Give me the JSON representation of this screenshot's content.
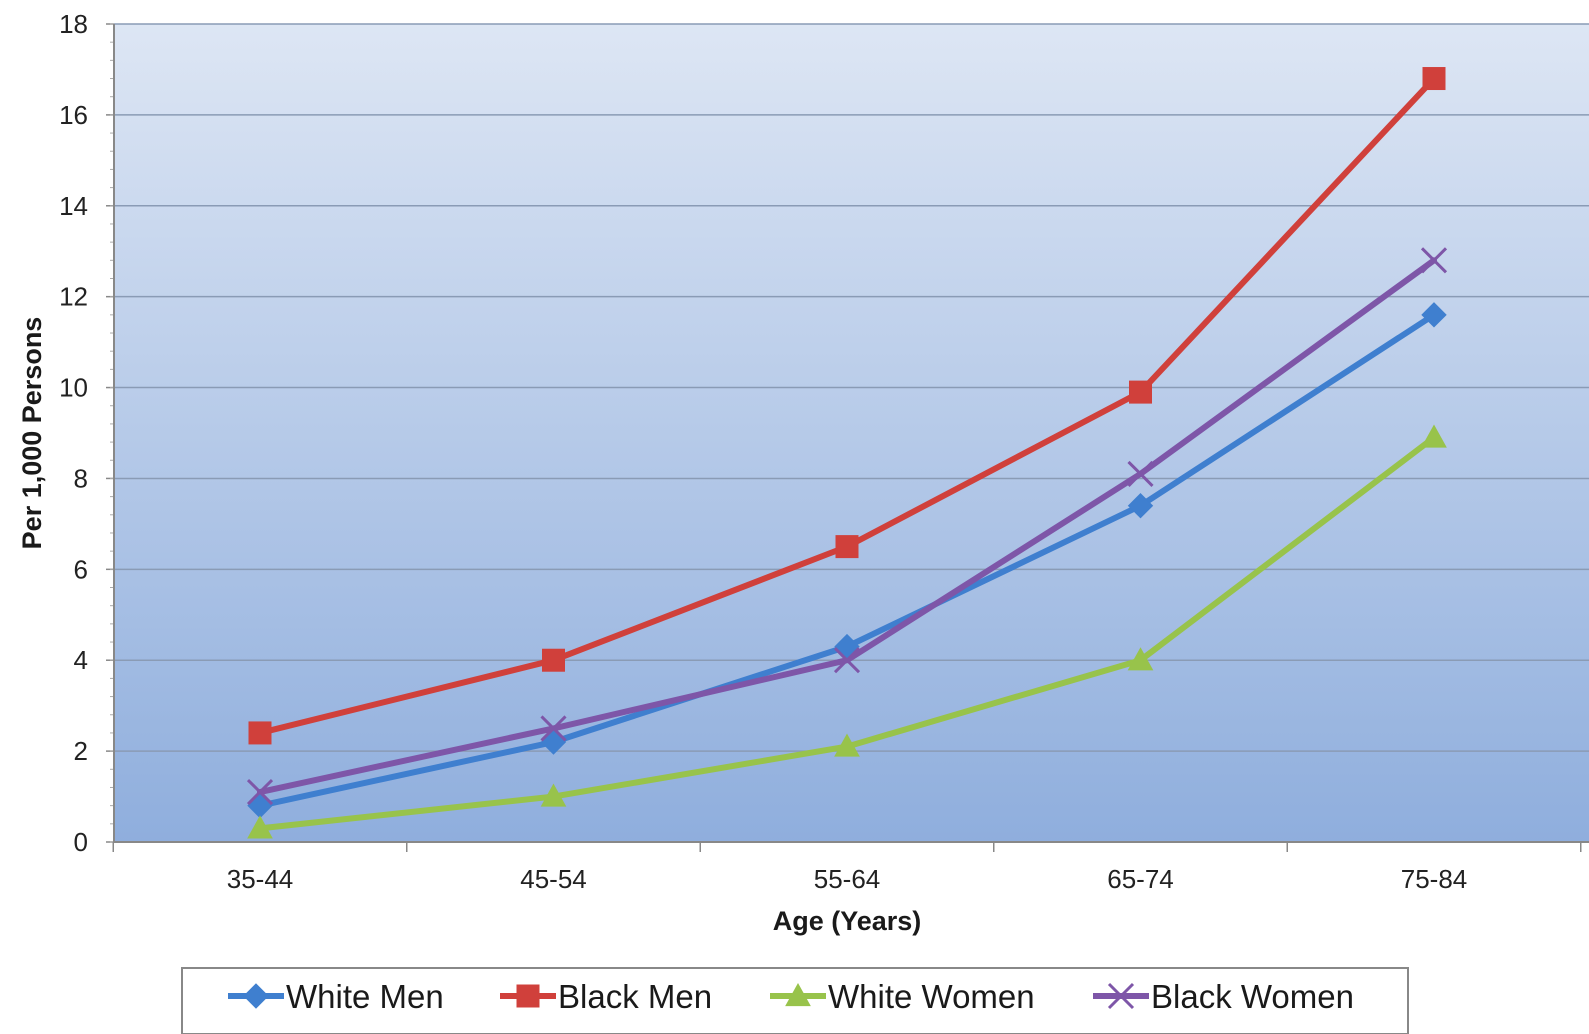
{
  "chart_data": {
    "type": "line",
    "title": "",
    "xlabel": "Age (Years)",
    "ylabel": "Per 1,000 Persons",
    "categories": [
      "35-44",
      "45-54",
      "55-64",
      "65-74",
      "75-84"
    ],
    "ylim": [
      0,
      18
    ],
    "yticks": [
      0,
      2,
      4,
      6,
      8,
      10,
      12,
      14,
      16,
      18
    ],
    "grid": true,
    "legend_position": "bottom",
    "background": "gradient light blue to blue",
    "series": [
      {
        "name": "White Men",
        "color": "#3F7FCF",
        "marker": "diamond",
        "values": [
          0.8,
          2.2,
          4.3,
          7.4,
          11.6
        ]
      },
      {
        "name": "Black Men",
        "color": "#D0403B",
        "marker": "square",
        "values": [
          2.4,
          4.0,
          6.5,
          9.9,
          16.8
        ]
      },
      {
        "name": "White Women",
        "color": "#98C34B",
        "marker": "triangle",
        "values": [
          0.3,
          1.0,
          2.1,
          4.0,
          8.9
        ]
      },
      {
        "name": "Black Women",
        "color": "#7E56A8",
        "marker": "x",
        "values": [
          1.1,
          2.5,
          4.0,
          8.1,
          12.8
        ]
      }
    ]
  }
}
